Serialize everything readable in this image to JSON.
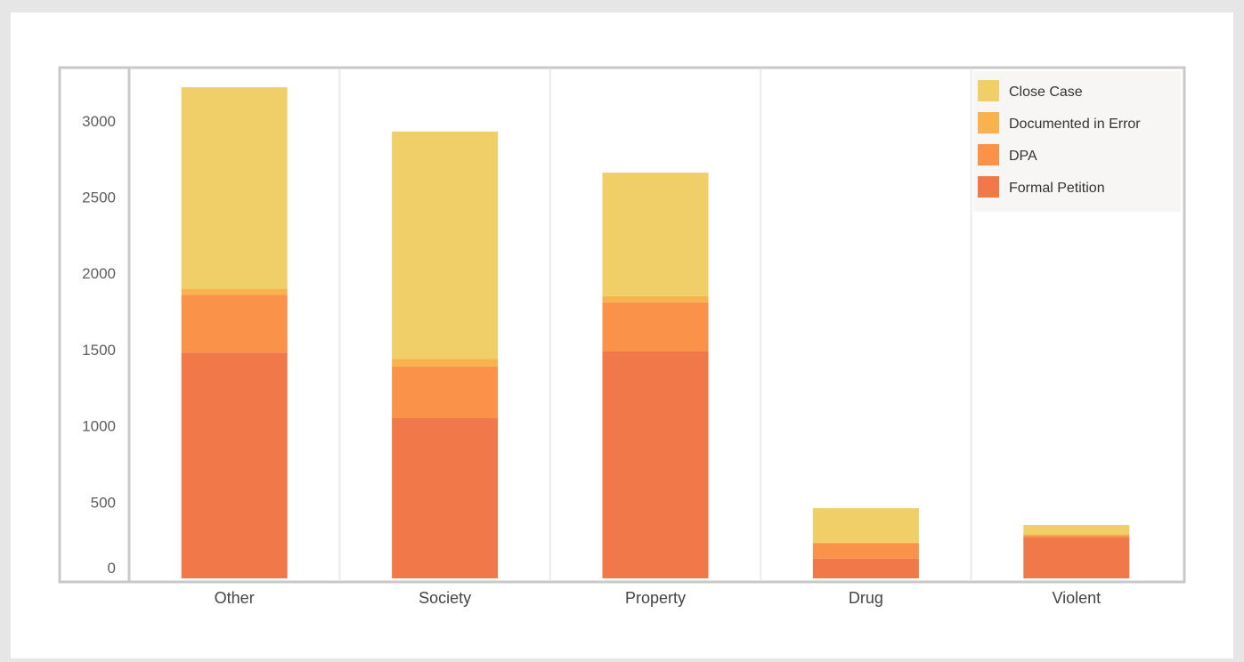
{
  "chart_data": {
    "type": "bar",
    "stacked": true,
    "categories": [
      "Other",
      "Society",
      "Property",
      "Drug",
      "Violent"
    ],
    "series": [
      {
        "name": "Formal Petition",
        "color": "#f07849",
        "values": [
          1480,
          1050,
          1490,
          130,
          270
        ]
      },
      {
        "name": "DPA",
        "color": "#fb9249",
        "values": [
          380,
          340,
          320,
          100,
          10
        ]
      },
      {
        "name": "Documented in Error",
        "color": "#f8b34e",
        "values": [
          40,
          50,
          40,
          5,
          10
        ]
      },
      {
        "name": "Close Case",
        "color": "#f1cf68",
        "values": [
          1320,
          1490,
          810,
          225,
          60
        ]
      }
    ],
    "y_ticks": [
      "0",
      "500",
      "1000",
      "1500",
      "2000",
      "2500",
      "3000"
    ],
    "ylim": [
      0,
      3300
    ],
    "grid": "vertical separators between categories",
    "legend_position": "top-right",
    "legend_order": [
      "Close Case",
      "Documented in Error",
      "DPA",
      "Formal Petition"
    ],
    "colors": {
      "frame": "#c8c8c8",
      "separator": "#ebebeb",
      "legend_bg": "#f7f6f5"
    }
  }
}
